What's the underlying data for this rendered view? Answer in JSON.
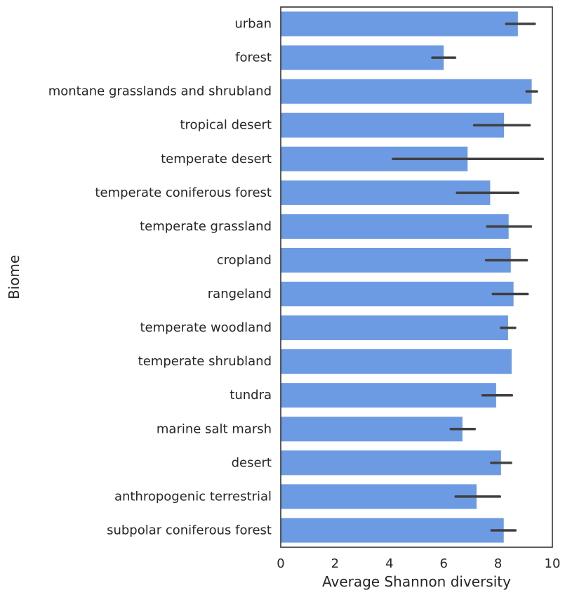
{
  "chart_data": {
    "type": "bar",
    "orientation": "horizontal",
    "xlabel": "Average Shannon diversity",
    "ylabel": "Biome",
    "xlim": [
      0,
      10
    ],
    "xticks": [
      0,
      2,
      4,
      6,
      8,
      10
    ],
    "grid": false,
    "legend": "none",
    "bar_color": "#6d9be3",
    "errorbar_color": "#404040",
    "categories": [
      "urban",
      "forest",
      "montane grasslands and shrubland",
      "tropical desert",
      "temperate desert",
      "temperate coniferous forest",
      "temperate grassland",
      "cropland",
      "rangeland",
      "temperate woodland",
      "temperate shrubland",
      "tundra",
      "marine salt marsh",
      "desert",
      "anthropogenic terrestrial",
      "subpolar coniferous forest"
    ],
    "values": [
      8.73,
      6.0,
      9.24,
      8.22,
      6.88,
      7.71,
      8.39,
      8.47,
      8.57,
      8.37,
      8.5,
      7.93,
      6.69,
      8.11,
      7.21,
      8.21
    ],
    "error_low": [
      8.3,
      5.58,
      9.05,
      7.12,
      4.13,
      6.49,
      7.6,
      7.56,
      7.81,
      8.11,
      null,
      7.43,
      6.26,
      7.75,
      6.44,
      7.76
    ],
    "error_high": [
      9.35,
      6.42,
      9.43,
      9.16,
      9.65,
      8.74,
      9.21,
      9.06,
      9.09,
      8.63,
      null,
      8.51,
      7.14,
      8.48,
      8.07,
      8.64
    ]
  }
}
